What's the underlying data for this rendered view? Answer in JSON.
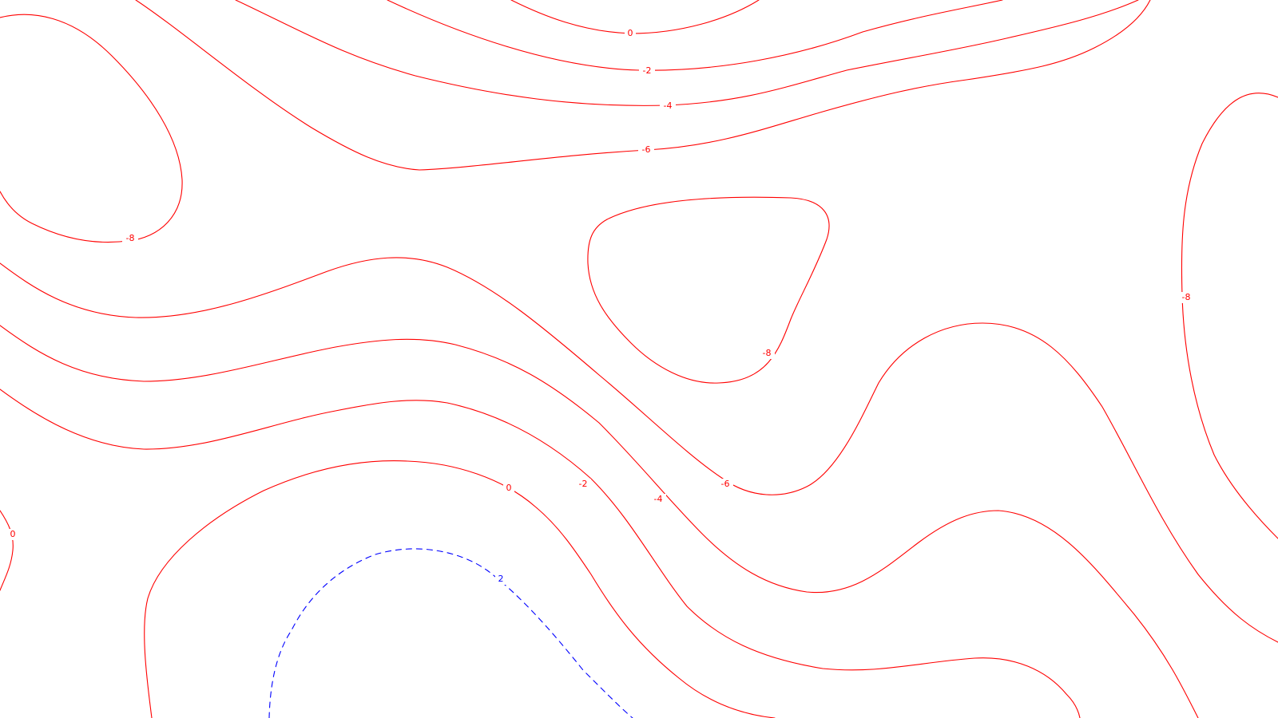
{
  "map": {
    "colors": {
      "positive": "#ff0000",
      "negative": "#0000ff",
      "background": "#ffffff"
    },
    "labels": {
      "top_0": "0",
      "top_m2": "-2",
      "top_m4": "-4",
      "top_m6": "-6",
      "left_m8": "-8",
      "center_m8": "-8",
      "right_m8": "-8",
      "mid_m6": "-6",
      "mid_m4": "-4",
      "mid_m2": "-2",
      "mid_0": "0",
      "left_0": "0",
      "blue_2": "2"
    }
  }
}
